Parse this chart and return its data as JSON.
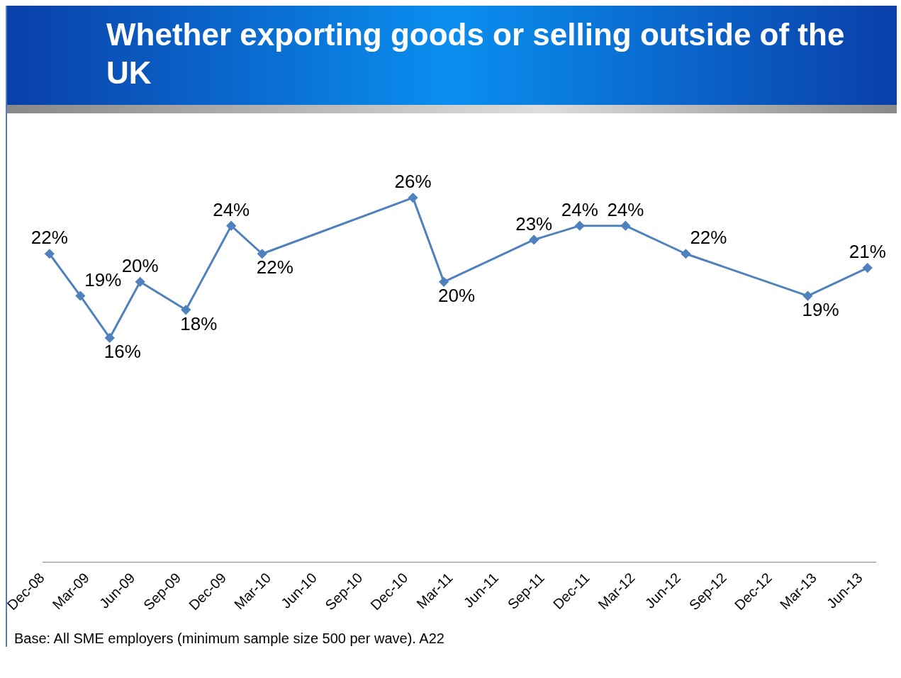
{
  "chart_data": {
    "type": "line",
    "title": "Whether exporting goods or selling outside of the UK",
    "x": [
      "2008-12-15",
      "2009-02-15",
      "2009-04-15",
      "2009-06-15",
      "2009-09-15",
      "2009-12-15",
      "2010-02-15",
      "2010-12-15",
      "2011-02-15",
      "2011-08-15",
      "2011-11-15",
      "2012-02-15",
      "2012-06-15",
      "2013-02-15",
      "2013-06-15"
    ],
    "series": [
      {
        "color": "#4f81bd",
        "values": [
          22,
          19,
          16,
          20,
          18,
          24,
          22,
          26,
          20,
          23,
          24,
          24,
          22,
          19,
          21
        ],
        "value_labels": [
          "22%",
          "19%",
          "16%",
          "20%",
          "18%",
          "24%",
          "22%",
          "26%",
          "20%",
          "23%",
          "24%",
          "24%",
          "22%",
          "19%",
          "21%"
        ]
      }
    ],
    "xlim": [
      "2008-12-01",
      "2013-07-01"
    ],
    "xticks": [
      {
        "value": "2008-12-01",
        "label": "Dec-08"
      },
      {
        "value": "2009-03-01",
        "label": "Mar-09"
      },
      {
        "value": "2009-06-01",
        "label": "Jun-09"
      },
      {
        "value": "2009-09-01",
        "label": "Sep-09"
      },
      {
        "value": "2009-12-01",
        "label": "Dec-09"
      },
      {
        "value": "2010-03-01",
        "label": "Mar-10"
      },
      {
        "value": "2010-06-01",
        "label": "Jun-10"
      },
      {
        "value": "2010-09-01",
        "label": "Sep-10"
      },
      {
        "value": "2010-12-01",
        "label": "Dec-10"
      },
      {
        "value": "2011-03-01",
        "label": "Mar-11"
      },
      {
        "value": "2011-06-01",
        "label": "Jun-11"
      },
      {
        "value": "2011-09-01",
        "label": "Sep-11"
      },
      {
        "value": "2011-12-01",
        "label": "Dec-11"
      },
      {
        "value": "2012-03-01",
        "label": "Mar-12"
      },
      {
        "value": "2012-06-01",
        "label": "Jun-12"
      },
      {
        "value": "2012-09-01",
        "label": "Sep-12"
      },
      {
        "value": "2012-12-01",
        "label": "Dec-12"
      },
      {
        "value": "2013-03-01",
        "label": "Mar-13"
      },
      {
        "value": "2013-06-01",
        "label": "Jun-13"
      }
    ],
    "tick_labels": "x",
    "grid": false,
    "legend": false,
    "marker": "diamond",
    "line_style": "solid",
    "annotations": [
      "Base: All SME employers (minimum sample size 500 per wave). A22"
    ]
  }
}
